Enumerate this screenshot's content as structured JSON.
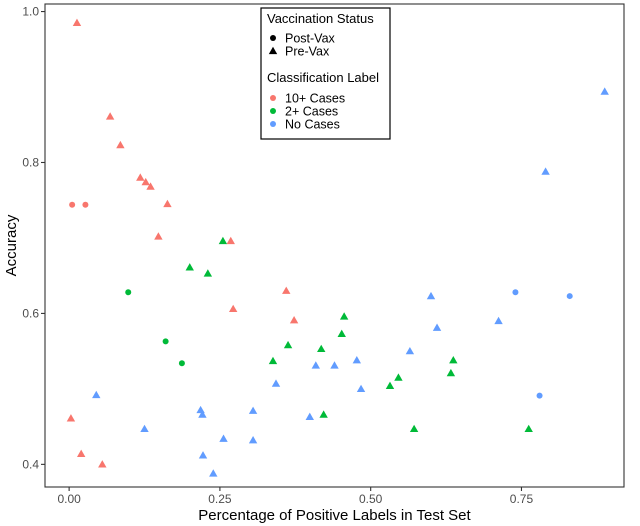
{
  "chart_data": {
    "type": "scatter",
    "xlabel": "Percentage of Positive Labels in Test Set",
    "ylabel": "Accuracy",
    "xlim": [
      -0.04,
      0.92
    ],
    "ylim": [
      0.37,
      1.01
    ],
    "x_ticks": [
      0.0,
      0.25,
      0.5,
      0.75
    ],
    "x_tick_labels": [
      "0.00",
      "0.25",
      "0.50",
      "0.75"
    ],
    "y_ticks": [
      0.4,
      0.6,
      0.8,
      1.0
    ],
    "y_tick_labels": [
      "0.4",
      "0.6",
      "0.8",
      "1.0"
    ],
    "grid": false,
    "legend_placement": "top-center",
    "legend": {
      "shape_title": "Vaccination Status",
      "shape_entries": [
        {
          "label": "Post-Vax",
          "shape": "circle"
        },
        {
          "label": "Pre-Vax",
          "shape": "triangle"
        }
      ],
      "color_title": "Classification Label",
      "color_entries": [
        {
          "label": "10+ Cases",
          "color": "#F8766D"
        },
        {
          "label": "2+ Cases",
          "color": "#00BA38"
        },
        {
          "label": "No Cases",
          "color": "#619CFF"
        }
      ]
    },
    "series": [
      {
        "name": "10+ Cases",
        "color": "#F8766D",
        "points": [
          {
            "x": 0.005,
            "y": 0.744,
            "shape": "circle"
          },
          {
            "x": 0.027,
            "y": 0.744,
            "shape": "circle"
          },
          {
            "x": 0.013,
            "y": 0.985,
            "shape": "triangle"
          },
          {
            "x": 0.068,
            "y": 0.861,
            "shape": "triangle"
          },
          {
            "x": 0.085,
            "y": 0.823,
            "shape": "triangle"
          },
          {
            "x": 0.118,
            "y": 0.78,
            "shape": "triangle"
          },
          {
            "x": 0.127,
            "y": 0.774,
            "shape": "triangle"
          },
          {
            "x": 0.135,
            "y": 0.768,
            "shape": "triangle"
          },
          {
            "x": 0.163,
            "y": 0.745,
            "shape": "triangle"
          },
          {
            "x": 0.148,
            "y": 0.702,
            "shape": "triangle"
          },
          {
            "x": 0.268,
            "y": 0.696,
            "shape": "triangle"
          },
          {
            "x": 0.272,
            "y": 0.606,
            "shape": "triangle"
          },
          {
            "x": 0.36,
            "y": 0.63,
            "shape": "triangle"
          },
          {
            "x": 0.373,
            "y": 0.591,
            "shape": "triangle"
          },
          {
            "x": 0.003,
            "y": 0.461,
            "shape": "triangle"
          },
          {
            "x": 0.02,
            "y": 0.414,
            "shape": "triangle"
          },
          {
            "x": 0.055,
            "y": 0.4,
            "shape": "triangle"
          }
        ]
      },
      {
        "name": "2+ Cases",
        "color": "#00BA38",
        "points": [
          {
            "x": 0.098,
            "y": 0.628,
            "shape": "circle"
          },
          {
            "x": 0.16,
            "y": 0.563,
            "shape": "circle"
          },
          {
            "x": 0.187,
            "y": 0.534,
            "shape": "circle"
          },
          {
            "x": 0.2,
            "y": 0.661,
            "shape": "triangle"
          },
          {
            "x": 0.23,
            "y": 0.653,
            "shape": "triangle"
          },
          {
            "x": 0.255,
            "y": 0.696,
            "shape": "triangle"
          },
          {
            "x": 0.338,
            "y": 0.537,
            "shape": "triangle"
          },
          {
            "x": 0.363,
            "y": 0.558,
            "shape": "triangle"
          },
          {
            "x": 0.418,
            "y": 0.553,
            "shape": "triangle"
          },
          {
            "x": 0.422,
            "y": 0.466,
            "shape": "triangle"
          },
          {
            "x": 0.452,
            "y": 0.573,
            "shape": "triangle"
          },
          {
            "x": 0.456,
            "y": 0.596,
            "shape": "triangle"
          },
          {
            "x": 0.532,
            "y": 0.504,
            "shape": "triangle"
          },
          {
            "x": 0.546,
            "y": 0.515,
            "shape": "triangle"
          },
          {
            "x": 0.572,
            "y": 0.447,
            "shape": "triangle"
          },
          {
            "x": 0.633,
            "y": 0.521,
            "shape": "triangle"
          },
          {
            "x": 0.637,
            "y": 0.538,
            "shape": "triangle"
          },
          {
            "x": 0.762,
            "y": 0.447,
            "shape": "triangle"
          }
        ]
      },
      {
        "name": "No Cases",
        "color": "#619CFF",
        "points": [
          {
            "x": 0.74,
            "y": 0.628,
            "shape": "circle"
          },
          {
            "x": 0.83,
            "y": 0.623,
            "shape": "circle"
          },
          {
            "x": 0.78,
            "y": 0.491,
            "shape": "circle"
          },
          {
            "x": 0.045,
            "y": 0.492,
            "shape": "triangle"
          },
          {
            "x": 0.125,
            "y": 0.447,
            "shape": "triangle"
          },
          {
            "x": 0.218,
            "y": 0.472,
            "shape": "triangle"
          },
          {
            "x": 0.221,
            "y": 0.466,
            "shape": "triangle"
          },
          {
            "x": 0.222,
            "y": 0.412,
            "shape": "triangle"
          },
          {
            "x": 0.239,
            "y": 0.388,
            "shape": "triangle"
          },
          {
            "x": 0.256,
            "y": 0.434,
            "shape": "triangle"
          },
          {
            "x": 0.305,
            "y": 0.471,
            "shape": "triangle"
          },
          {
            "x": 0.305,
            "y": 0.432,
            "shape": "triangle"
          },
          {
            "x": 0.343,
            "y": 0.507,
            "shape": "triangle"
          },
          {
            "x": 0.399,
            "y": 0.463,
            "shape": "triangle"
          },
          {
            "x": 0.409,
            "y": 0.531,
            "shape": "triangle"
          },
          {
            "x": 0.44,
            "y": 0.531,
            "shape": "triangle"
          },
          {
            "x": 0.477,
            "y": 0.538,
            "shape": "triangle"
          },
          {
            "x": 0.484,
            "y": 0.5,
            "shape": "triangle"
          },
          {
            "x": 0.565,
            "y": 0.55,
            "shape": "triangle"
          },
          {
            "x": 0.6,
            "y": 0.623,
            "shape": "triangle"
          },
          {
            "x": 0.61,
            "y": 0.581,
            "shape": "triangle"
          },
          {
            "x": 0.712,
            "y": 0.59,
            "shape": "triangle"
          },
          {
            "x": 0.79,
            "y": 0.788,
            "shape": "triangle"
          },
          {
            "x": 0.888,
            "y": 0.894,
            "shape": "triangle"
          }
        ]
      }
    ]
  }
}
